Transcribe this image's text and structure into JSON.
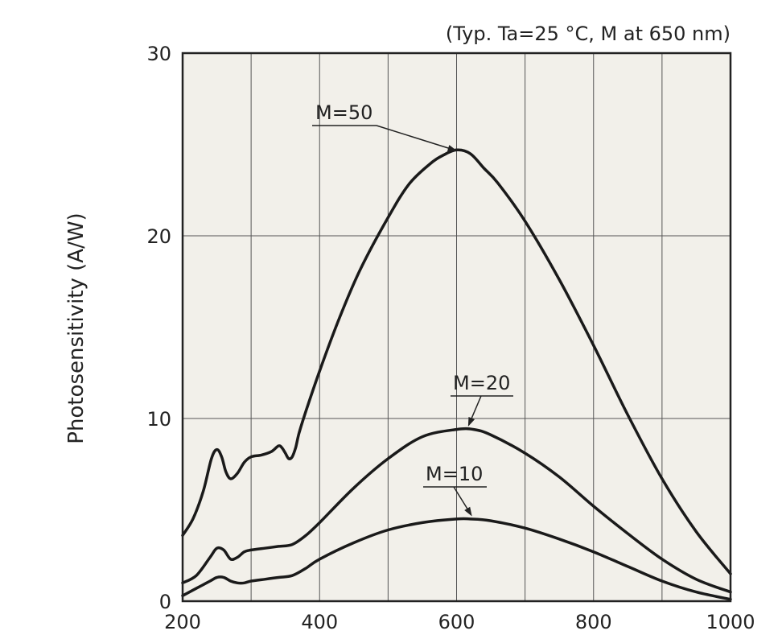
{
  "chart_data": {
    "type": "line",
    "title": "",
    "annotation": "(Typ. Ta=25 °C, M at 650 nm)",
    "xlabel": "",
    "ylabel": "Photosensitivity (A/W)",
    "xlim": [
      200,
      1000
    ],
    "ylim": [
      0,
      30
    ],
    "xticks": [
      200,
      400,
      600,
      800,
      1000
    ],
    "xtick_labels": [
      "200",
      "400",
      "600",
      "800",
      "1000"
    ],
    "yticks": [
      0,
      10,
      20,
      30
    ],
    "ytick_labels": [
      "0",
      "10",
      "20",
      "30"
    ],
    "grid": true,
    "x_gridlines": [
      300,
      400,
      500,
      600,
      700,
      800,
      900
    ],
    "y_gridlines": [
      10,
      20
    ],
    "background_color": "#f2f0ea",
    "line_color": "#1a1a1a",
    "series": [
      {
        "name": "M=50",
        "x": [
          200,
          215,
          230,
          242,
          250,
          257,
          263,
          270,
          280,
          290,
          300,
          315,
          330,
          340,
          345,
          350,
          355,
          360,
          365,
          370,
          380,
          400,
          430,
          460,
          500,
          530,
          560,
          580,
          600,
          620,
          640,
          660,
          700,
          750,
          800,
          850,
          900,
          950,
          1000
        ],
        "y": [
          3.6,
          4.5,
          6.0,
          7.8,
          8.3,
          7.9,
          7.1,
          6.7,
          7.0,
          7.6,
          7.9,
          8.0,
          8.2,
          8.5,
          8.4,
          8.1,
          7.8,
          7.9,
          8.4,
          9.2,
          10.4,
          12.6,
          15.6,
          18.2,
          21.0,
          22.8,
          23.9,
          24.4,
          24.7,
          24.5,
          23.7,
          22.9,
          20.8,
          17.6,
          14.0,
          10.2,
          6.7,
          3.8,
          1.5
        ]
      },
      {
        "name": "M=20",
        "x": [
          200,
          220,
          240,
          250,
          260,
          270,
          280,
          290,
          300,
          320,
          340,
          360,
          380,
          400,
          450,
          500,
          550,
          600,
          625,
          650,
          700,
          750,
          800,
          850,
          900,
          950,
          1000
        ],
        "y": [
          1.0,
          1.4,
          2.4,
          2.9,
          2.8,
          2.3,
          2.4,
          2.7,
          2.8,
          2.9,
          3.0,
          3.1,
          3.6,
          4.3,
          6.2,
          7.8,
          9.0,
          9.4,
          9.4,
          9.1,
          8.1,
          6.8,
          5.2,
          3.7,
          2.3,
          1.2,
          0.5
        ]
      },
      {
        "name": "M=10",
        "x": [
          200,
          220,
          240,
          250,
          260,
          270,
          280,
          290,
          300,
          320,
          340,
          360,
          380,
          400,
          450,
          500,
          550,
          600,
          620,
          650,
          700,
          750,
          800,
          850,
          900,
          950,
          1000
        ],
        "y": [
          0.3,
          0.7,
          1.1,
          1.3,
          1.3,
          1.1,
          1.0,
          1.0,
          1.1,
          1.2,
          1.3,
          1.4,
          1.8,
          2.3,
          3.2,
          3.9,
          4.3,
          4.5,
          4.5,
          4.4,
          4.0,
          3.4,
          2.7,
          1.9,
          1.1,
          0.5,
          0.1
        ]
      }
    ],
    "curve_labels": [
      {
        "text": "M=50",
        "arrow_to": [
          605,
          24.6
        ]
      },
      {
        "text": "M=20",
        "arrow_to": [
          615,
          9.4
        ]
      },
      {
        "text": "M=10",
        "arrow_to": [
          625,
          4.5
        ]
      }
    ]
  }
}
